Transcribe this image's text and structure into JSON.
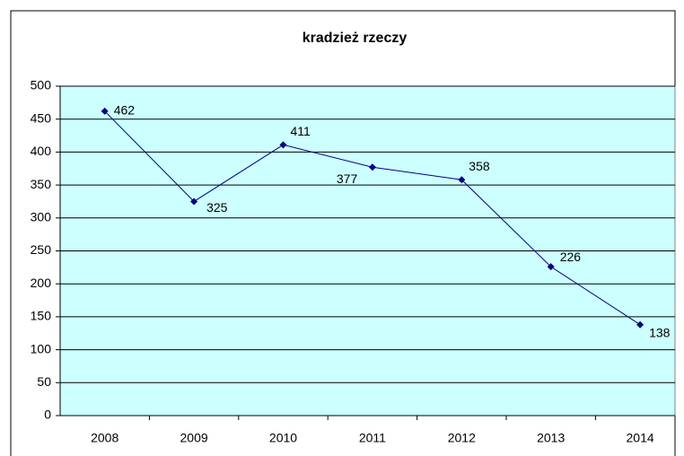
{
  "chart_data": {
    "type": "line",
    "title": "kradzież rzeczy",
    "categories": [
      "2008",
      "2009",
      "2010",
      "2011",
      "2012",
      "2013",
      "2014"
    ],
    "series": [
      {
        "name": "kradzież rzeczy",
        "color": "#000080",
        "values": [
          462,
          325,
          411,
          377,
          358,
          226,
          138
        ]
      }
    ],
    "ylim": [
      0,
      500
    ],
    "yticks": [
      0,
      50,
      100,
      150,
      200,
      250,
      300,
      350,
      400,
      450,
      500
    ],
    "grid": true,
    "legend": false,
    "plot_background": "#ccffff"
  }
}
